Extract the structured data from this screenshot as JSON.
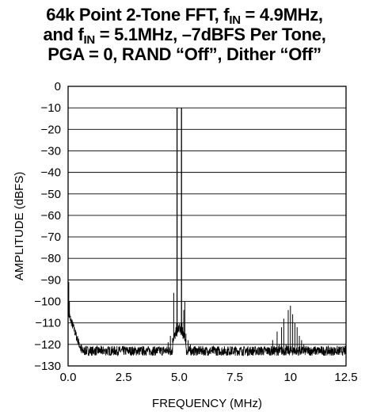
{
  "title": {
    "line1_part1": "64k Point 2-Tone FFT, f",
    "line1_sub": "IN",
    "line1_part2": " = 4.9MHz,",
    "line2_part1": "and f",
    "line2_sub": "IN",
    "line2_part2": " = 5.1MHz, –7dBFS Per Tone,",
    "line3": "PGA = 0, RAND “Off”, Dither “Off”"
  },
  "chart_data": {
    "type": "line",
    "xlabel": "FREQUENCY (MHz)",
    "ylabel": "AMPLITUDE (dBFS)",
    "xlim": [
      0,
      12.5
    ],
    "ylim": [
      -130,
      0
    ],
    "xticks": [
      "0.0",
      "2.5",
      "5.0",
      "7.5",
      "10",
      "12.5"
    ],
    "xtick_values": [
      0,
      2.5,
      5,
      7.5,
      10,
      12.5
    ],
    "yticks": [
      "0",
      "−10",
      "−20",
      "−30",
      "−40",
      "−50",
      "−60",
      "−70",
      "−80",
      "−90",
      "−100",
      "−110",
      "−120",
      "−130"
    ],
    "ytick_values": [
      0,
      -10,
      -20,
      -30,
      -40,
      -50,
      -60,
      -70,
      -80,
      -90,
      -100,
      -110,
      -120,
      -130
    ],
    "grid": "horizontal",
    "noise_floor": -123,
    "series": [
      {
        "x": [
          0.0,
          0.03,
          0.06,
          0.1,
          0.15,
          0.2,
          0.3,
          0.4,
          0.5,
          0.6,
          0.8,
          1.0,
          1.5,
          2.0,
          2.5,
          3.0,
          3.5,
          4.0,
          4.3,
          4.5,
          4.6,
          4.7,
          4.75,
          4.8,
          4.85,
          4.88,
          4.9,
          4.92,
          4.95,
          5.0,
          5.05,
          5.08,
          5.1,
          5.12,
          5.15,
          5.2,
          5.25,
          5.3,
          5.4,
          5.5,
          5.7,
          6.0,
          6.5,
          7.0,
          7.5,
          8.0,
          8.5,
          9.0,
          9.2,
          9.4,
          9.5,
          9.6,
          9.7,
          9.8,
          9.9,
          10.0,
          10.1,
          10.2,
          10.3,
          10.4,
          10.5,
          10.6,
          10.8,
          11.0,
          11.5,
          12.0,
          12.5
        ],
        "y": [
          -97,
          -91,
          -100,
          -108,
          -112,
          -115,
          -116,
          -118,
          -119,
          -120,
          -121,
          -121,
          -122,
          -122,
          -122,
          -122,
          -122,
          -122,
          -121,
          -119,
          -116,
          -117,
          -96,
          -115,
          -112,
          -110,
          -10,
          -110,
          -113,
          -115,
          -113,
          -110,
          -10,
          -110,
          -112,
          -104,
          -100,
          -115,
          -118,
          -120,
          -121,
          -122,
          -122,
          -122,
          -122,
          -122,
          -122,
          -122,
          -118,
          -114,
          -120,
          -112,
          -108,
          -120,
          -104,
          -102,
          -106,
          -110,
          -112,
          -116,
          -118,
          -120,
          -121,
          -122,
          -122,
          -122,
          -122
        ]
      }
    ]
  }
}
